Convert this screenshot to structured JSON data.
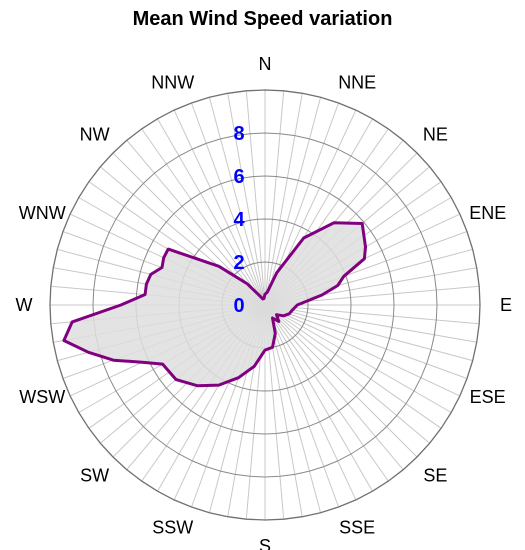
{
  "chart_data": {
    "type": "radar",
    "title": "Mean Wind Speed variation",
    "directions": [
      "N",
      "NNE",
      "NE",
      "ENE",
      "E",
      "ESE",
      "SE",
      "SSE",
      "S",
      "SSW",
      "SW",
      "WSW",
      "W",
      "WNW",
      "NW",
      "NNW"
    ],
    "r_ticks": [
      0,
      2,
      4,
      6,
      8
    ],
    "rlim": [
      0,
      10
    ],
    "bins": 72,
    "angles": [
      0,
      10,
      20,
      30,
      40,
      50,
      60,
      65,
      70,
      75,
      80,
      90,
      100,
      110,
      120,
      130,
      140,
      150,
      160,
      170,
      180,
      190,
      200,
      210,
      220,
      230,
      240,
      245,
      250,
      255,
      260,
      265,
      270,
      275,
      280,
      285,
      290,
      295,
      300,
      310,
      320,
      330,
      340,
      350
    ],
    "values": [
      0.5,
      0.6,
      1.6,
      3.6,
      5.0,
      5.9,
      5.4,
      5.1,
      3.9,
      3.5,
      2.7,
      1.5,
      1.3,
      1.2,
      1.0,
      0.7,
      1.0,
      0.7,
      1.4,
      2.0,
      2.1,
      2.9,
      3.6,
      4.3,
      4.9,
      5.4,
      5.5,
      6.3,
      7.5,
      8.5,
      9.5,
      9.0,
      6.7,
      5.6,
      5.6,
      5.5,
      5.1,
      5.2,
      5.2,
      2.8,
      1.3,
      0.5,
      0.3,
      0.3
    ],
    "tick_color": "#0000ff",
    "series_color": "#800080",
    "fill_color": "#dedede",
    "grid": true
  }
}
